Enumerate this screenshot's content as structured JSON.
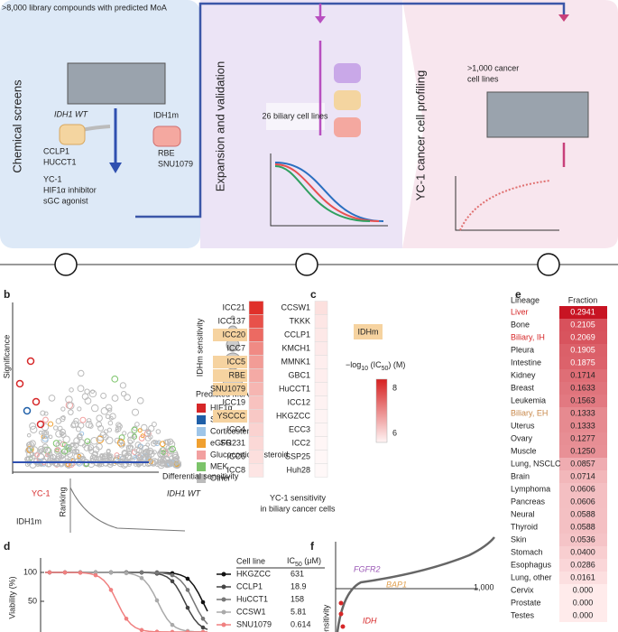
{
  "panel_a": {
    "library": ">8,000 library compounds with predicted MoA",
    "stage1": "Chemical screens",
    "wt_label": "IDH1 WT",
    "wt_lines": [
      "CCLP1",
      "HUCCT1"
    ],
    "mut_label": "IDH1m",
    "mut_lines": [
      "RBE",
      "SNU1079"
    ],
    "compound": [
      "YC-1",
      "HIF1α inhibitor",
      "sGC agonist"
    ],
    "stage2": "Expansion and validation",
    "biliary": "26 biliary cell lines",
    "stage3": "YC-1 cancer cell profiling",
    "cancer_lines": [
      ">1,000 cancer",
      "cell lines"
    ]
  },
  "panel_b": {
    "letter": "b",
    "y_label": "Significance",
    "size_label": "IDHm sensitivity",
    "legend_title": "Predicted MoA",
    "legend": [
      {
        "name": "HIF1α",
        "color": "#d62728"
      },
      {
        "name": "SRC",
        "color": "#1f5fa8"
      },
      {
        "name": "Corticosteroid",
        "color": "#9ec5e8"
      },
      {
        "name": "eGFR",
        "color": "#f0a030"
      },
      {
        "name": "Glucocorticoid steroid",
        "color": "#f2a0a0"
      },
      {
        "name": "MEK",
        "color": "#7cc46a"
      },
      {
        "name": "Other",
        "color": "#bbbbbb"
      }
    ],
    "x_label": "Differential sensitivity",
    "hit": "YC-1",
    "wt": "IDH1 WT",
    "rank": "Ranking",
    "mut": "IDH1m"
  },
  "panel_c": {
    "letter": "c",
    "left": [
      "ICC21",
      "ICC137",
      "ICC20",
      "ICC7",
      "ICC5",
      "RBE",
      "SNU1079",
      "ICC19",
      "YSCCC",
      "ICC4",
      "SG231",
      "ICC6",
      "ICC8"
    ],
    "left_colors": [
      "#e0302a",
      "#e8514a",
      "#ec6a62",
      "#f08a84",
      "#f29c96",
      "#f4aaa5",
      "#f6b6b2",
      "#f8c2bf",
      "#f8c8c5",
      "#fad2d0",
      "#fbd8d6",
      "#fcdfdd",
      "#fde5e4"
    ],
    "highlight": [
      2,
      4,
      5,
      6,
      8
    ],
    "right": [
      "CCSW1",
      "TKKK",
      "CCLP1",
      "KMCH1",
      "MMNK1",
      "GBC1",
      "HuCCT1",
      "ICC12",
      "HKGZCC",
      "ECC3",
      "ICC2",
      "SSP25",
      "Huh28"
    ],
    "right_colors": [
      "#fce0de",
      "#fde6e5",
      "#fde8e7",
      "#fdeaea",
      "#feeeee",
      "#feeeee",
      "#fef0f0",
      "#fef2f2",
      "#fef4f4",
      "#fef5f5",
      "#fff6f6",
      "#fff7f7",
      "#fff8f8"
    ],
    "idhm": "IDHm",
    "scale": {
      "pre": "−log",
      "sub": "10",
      "mid": " (IC",
      "sub2": "50",
      "post": ") (M)"
    },
    "scale_ticks": [
      "8",
      "6"
    ],
    "caption": [
      "YC-1 sensitivity",
      "in biliary cancer cells"
    ]
  },
  "panel_e": {
    "letter": "e",
    "headers": [
      "Lineage",
      "Fraction"
    ],
    "rows": [
      [
        "Liver",
        "0.2941"
      ],
      [
        "Bone",
        "0.2105"
      ],
      [
        "Biliary, IH",
        "0.2069"
      ],
      [
        "Pleura",
        "0.1905"
      ],
      [
        "Intestine",
        "0.1875"
      ],
      [
        "Kidney",
        "0.1714"
      ],
      [
        "Breast",
        "0.1633"
      ],
      [
        "Leukemia",
        "0.1563"
      ],
      [
        "Biliary, EH",
        "0.1333"
      ],
      [
        "Uterus",
        "0.1333"
      ],
      [
        "Ovary",
        "0.1277"
      ],
      [
        "Muscle",
        "0.1250"
      ],
      [
        "Lung, NSCLC",
        "0.0857"
      ],
      [
        "Brain",
        "0.0714"
      ],
      [
        "Lymphoma",
        "0.0606"
      ],
      [
        "Pancreas",
        "0.0606"
      ],
      [
        "Neural",
        "0.0588"
      ],
      [
        "Thyroid",
        "0.0588"
      ],
      [
        "Skin",
        "0.0536"
      ],
      [
        "Stomach",
        "0.0400"
      ],
      [
        "Esophagus",
        "0.0286"
      ],
      [
        "Lung, other",
        "0.0161"
      ],
      [
        "Cervix",
        "0.000"
      ],
      [
        "Prostate",
        "0.000"
      ],
      [
        "Testes",
        "0.000"
      ]
    ],
    "name_colors": {
      "0": "#d62728",
      "2": "#d62728",
      "8": "#c8884a"
    }
  },
  "panel_d": {
    "letter": "d",
    "y_label": "Viability (%)",
    "yticks": [
      "100",
      "50"
    ],
    "col1": "Cell line",
    "col2": {
      "main": "IC",
      "sub": "50",
      "unit": " (μM)"
    },
    "rows": [
      [
        "HKGZCC",
        "631"
      ],
      [
        "CCLP1",
        "18.9"
      ],
      [
        "HuCCT1",
        "158"
      ],
      [
        "CCSW1",
        "5.81"
      ],
      [
        "SNU1079",
        "0.614"
      ]
    ],
    "colors": [
      "#111111",
      "#444444",
      "#777777",
      "#aaaaaa",
      "#f08080"
    ]
  },
  "panel_f": {
    "letter": "f",
    "genes": [
      "FGFR2",
      "BAP1",
      "IDH"
    ],
    "gene_colors": [
      "#9b59b6",
      "#e0a050",
      "#d62728"
    ],
    "x_tick": "1,000",
    "y_label": "Sensitivity"
  }
}
